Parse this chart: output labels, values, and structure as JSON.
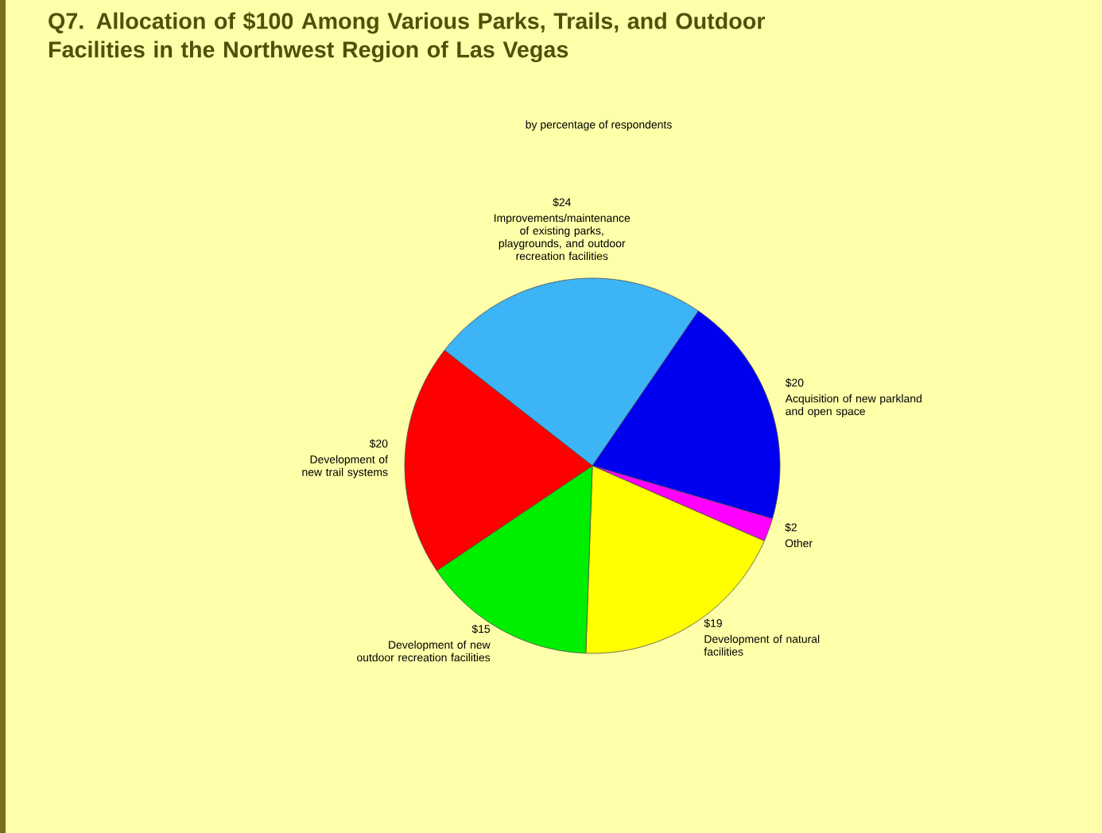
{
  "chart_data": {
    "type": "pie",
    "title": "Q7.  Allocation of $100 Among Various Parks, Trails, and Outdoor Facilities in the Northwest Region of Las Vegas",
    "subtitle": "by percentage of respondents",
    "categories": [
      "Improvements/maintenance of existing parks, playgrounds, and outdoor recreation facilities",
      "Acquisition of new parkland and open space",
      "Other",
      "Development of natural facilities",
      "Development of new outdoor recreation facilities",
      "Development of new trail systems"
    ],
    "values": [
      24,
      20,
      2,
      19,
      15,
      20
    ],
    "value_labels": [
      "$24",
      "$20",
      "$2",
      "$19",
      "$15",
      "$20"
    ],
    "colors": [
      "#3cb4f5",
      "#0000f0",
      "#ff00ff",
      "#ffff00",
      "#00ee00",
      "#ff0000"
    ]
  }
}
